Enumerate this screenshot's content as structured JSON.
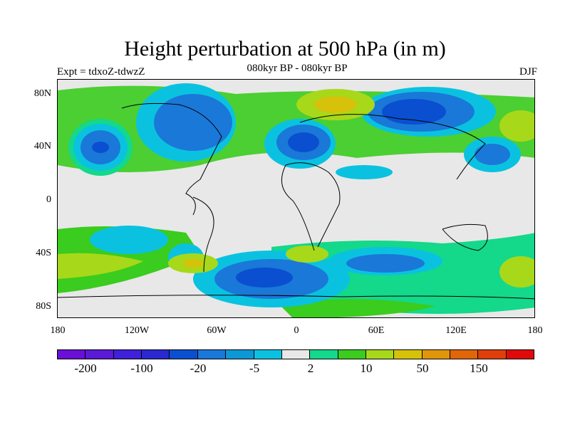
{
  "title": "Height perturbation at 500 hPa (in m)",
  "subtitle": "080kyr BP - 080kyr BP",
  "experiment": "Expt = tdxoZ-tdwzZ",
  "season": "DJF",
  "y_ticks": [
    "80N",
    "40N",
    "0",
    "40S",
    "80S"
  ],
  "x_ticks": [
    "180",
    "120W",
    "60W",
    "0",
    "60E",
    "120E",
    "180"
  ],
  "colorbar": {
    "colors": [
      "#6a0fd6",
      "#5a1ad6",
      "#4020d8",
      "#2a28d0",
      "#0a4fd0",
      "#1a78d8",
      "#0c98d6",
      "#0ac2e0",
      "#e8e8e8",
      "#14d88a",
      "#3acc1e",
      "#a8d81a",
      "#d6c20a",
      "#e0960a",
      "#e06608",
      "#e03e0a",
      "#e00a0a"
    ],
    "labels": [
      "-200",
      "-100",
      "-20",
      "-5",
      "2",
      "10",
      "50",
      "150"
    ]
  }
}
